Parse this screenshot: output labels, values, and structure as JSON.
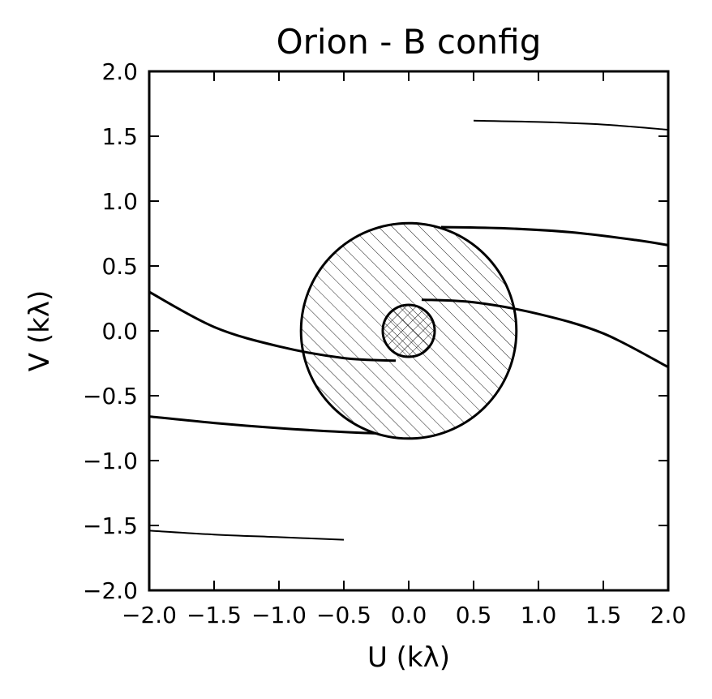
{
  "chart_data": {
    "type": "line",
    "title": "Orion - B config",
    "xlabel": "U (kλ)",
    "ylabel": "V (kλ)",
    "xlim": [
      -2.0,
      2.0
    ],
    "ylim": [
      -2.0,
      2.0
    ],
    "xticks": [
      "−2.0",
      "−1.5",
      "−1.0",
      "−0.5",
      "0.0",
      "0.5",
      "1.0",
      "1.5",
      "2.0"
    ],
    "yticks": [
      "2.0",
      "1.5",
      "1.0",
      "0.5",
      "0.0",
      "−0.5",
      "−1.0",
      "−1.5",
      "−2.0"
    ],
    "grid": false,
    "circles": [
      {
        "name": "outer",
        "cx": 0.0,
        "cy": 0.0,
        "r": 0.83,
        "hatch": "diagonal"
      },
      {
        "name": "inner",
        "cx": 0.0,
        "cy": 0.0,
        "r": 0.2,
        "hatch": "crosshatch"
      }
    ],
    "series": [
      {
        "x": [
          0.1,
          0.5,
          1.0,
          1.5,
          2.0
        ],
        "y": [
          0.24,
          0.22,
          0.13,
          -0.02,
          -0.28
        ]
      },
      {
        "x": [
          -2.0,
          -1.5,
          -1.0,
          -0.5,
          -0.1
        ],
        "y": [
          0.3,
          0.03,
          -0.12,
          -0.21,
          -0.23
        ]
      },
      {
        "x": [
          0.25,
          0.75,
          1.25,
          1.75,
          2.0
        ],
        "y": [
          0.8,
          0.79,
          0.76,
          0.7,
          0.66
        ]
      },
      {
        "x": [
          -2.0,
          -1.5,
          -1.0,
          -0.5,
          -0.25
        ],
        "y": [
          -0.66,
          -0.71,
          -0.75,
          -0.78,
          -0.79
        ]
      },
      {
        "x": [
          0.5,
          1.0,
          1.5,
          2.0
        ],
        "y": [
          1.62,
          1.61,
          1.59,
          1.55
        ]
      },
      {
        "x": [
          -2.0,
          -1.5,
          -1.0,
          -0.5
        ],
        "y": [
          -1.54,
          -1.57,
          -1.59,
          -1.61
        ]
      }
    ]
  }
}
